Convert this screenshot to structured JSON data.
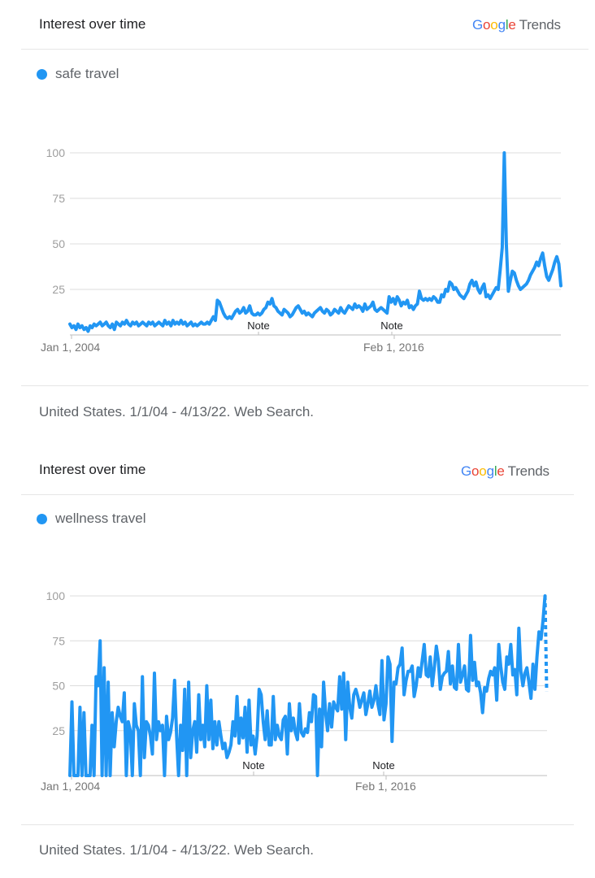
{
  "charts": [
    {
      "header": {
        "title": "Interest over time",
        "logo_google": [
          "G",
          "o",
          "o",
          "g",
          "l",
          "e"
        ],
        "logo_trends": "Trends"
      },
      "legend_label": "safe travel",
      "footer": "United States. 1/1/04 - 4/13/22. Web Search.",
      "colors": {
        "series": "#2196f3"
      }
    },
    {
      "header": {
        "title": "Interest over time",
        "logo_google": [
          "G",
          "o",
          "o",
          "g",
          "l",
          "e"
        ],
        "logo_trends": "Trends"
      },
      "legend_label": "wellness travel",
      "footer": "United States. 1/1/04 - 4/13/22. Web Search.",
      "colors": {
        "series": "#2196f3"
      }
    }
  ],
  "logo_colors": [
    "#4285f4",
    "#ea4335",
    "#fbbc05",
    "#4285f4",
    "#34a853",
    "#ea4335"
  ],
  "chart_data": [
    {
      "type": "line",
      "series": [
        {
          "name": "safe travel",
          "values": [
            6,
            4,
            5,
            3,
            6,
            4,
            5,
            3,
            4,
            2,
            5,
            4,
            6,
            5,
            6,
            7,
            5,
            6,
            7,
            5,
            4,
            6,
            3,
            7,
            6,
            5,
            7,
            6,
            8,
            6,
            5,
            7,
            6,
            7,
            5,
            6,
            7,
            6,
            5,
            7,
            6,
            7,
            5,
            6,
            7,
            6,
            5,
            8,
            6,
            7,
            5,
            8,
            6,
            7,
            6,
            8,
            6,
            7,
            5,
            6,
            7,
            5,
            6,
            5,
            6,
            7,
            6,
            6,
            7,
            6,
            8,
            10,
            8,
            19,
            18,
            15,
            12,
            10,
            9,
            10,
            9,
            11,
            13,
            14,
            12,
            13,
            15,
            12,
            13,
            16,
            12,
            11,
            11,
            12,
            11,
            12,
            14,
            15,
            18,
            17,
            20,
            16,
            15,
            13,
            12,
            11,
            14,
            13,
            12,
            10,
            11,
            13,
            15,
            16,
            14,
            12,
            13,
            11,
            12,
            11,
            10,
            12,
            13,
            14,
            15,
            13,
            12,
            14,
            13,
            11,
            12,
            14,
            13,
            12,
            15,
            13,
            12,
            14,
            16,
            15,
            14,
            17,
            15,
            16,
            15,
            13,
            17,
            14,
            15,
            16,
            18,
            14,
            13,
            14,
            15,
            14,
            13,
            12,
            21,
            18,
            20,
            17,
            21,
            19,
            16,
            18,
            17,
            19,
            15,
            16,
            14,
            16,
            17,
            24,
            20,
            19,
            20,
            19,
            20,
            19,
            21,
            20,
            18,
            18,
            22,
            21,
            25,
            24,
            29,
            28,
            25,
            26,
            24,
            22,
            21,
            20,
            22,
            24,
            28,
            30,
            27,
            29,
            25,
            23,
            26,
            28,
            21,
            22,
            20,
            22,
            24,
            26,
            25,
            36,
            48,
            100,
            50,
            24,
            30,
            35,
            34,
            30,
            27,
            25,
            26,
            27,
            28,
            30,
            33,
            35,
            37,
            40,
            38,
            42,
            45,
            38,
            32,
            30,
            33,
            36,
            40,
            43,
            39,
            27
          ]
        },
        {
          "name": "",
          "values": []
        }
      ],
      "x_labels": [
        "Jan 1, 2004",
        "Feb 1, 2016"
      ],
      "y_ticks": [
        25,
        50,
        75,
        100
      ],
      "annotations": [
        "Note",
        "Note"
      ],
      "ylim": [
        0,
        100
      ]
    },
    {
      "type": "line",
      "series": [
        {
          "name": "wellness travel",
          "values": [
            0,
            41,
            0,
            0,
            0,
            38,
            0,
            35,
            0,
            0,
            0,
            28,
            0,
            55,
            50,
            75,
            0,
            60,
            0,
            52,
            0,
            35,
            16,
            30,
            38,
            33,
            30,
            46,
            0,
            30,
            25,
            0,
            40,
            28,
            25,
            0,
            55,
            10,
            30,
            28,
            22,
            12,
            57,
            20,
            30,
            25,
            28,
            0,
            33,
            20,
            24,
            32,
            53,
            22,
            0,
            28,
            14,
            48,
            0,
            52,
            10,
            25,
            30,
            13,
            45,
            20,
            28,
            16,
            50,
            20,
            42,
            15,
            30,
            17,
            30,
            22,
            15,
            18,
            10,
            13,
            17,
            30,
            22,
            44,
            18,
            32,
            21,
            38,
            13,
            42,
            17,
            22,
            12,
            22,
            48,
            45,
            30,
            20,
            36,
            17,
            17,
            44,
            20,
            28,
            22,
            20,
            31,
            33,
            12,
            40,
            25,
            32,
            24,
            20,
            40,
            24,
            22,
            26,
            24,
            35,
            30,
            45,
            44,
            0,
            37,
            16,
            52,
            35,
            25,
            40,
            27,
            41,
            38,
            36,
            55,
            37,
            57,
            20,
            52,
            38,
            32,
            45,
            48,
            44,
            38,
            42,
            46,
            34,
            40,
            47,
            38,
            42,
            50,
            40,
            34,
            64,
            31,
            40,
            66,
            62,
            19,
            52,
            51,
            60,
            62,
            71,
            45,
            53,
            58,
            58,
            61,
            44,
            50,
            60,
            55,
            64,
            73,
            56,
            55,
            66,
            50,
            60,
            72,
            64,
            48,
            55,
            57,
            58,
            69,
            51,
            61,
            49,
            48,
            73,
            52,
            56,
            61,
            48,
            47,
            78,
            53,
            63,
            50,
            52,
            46,
            35,
            49,
            47,
            54,
            58,
            56,
            60,
            42,
            73,
            61,
            52,
            48,
            66,
            62,
            73,
            56,
            59,
            45,
            82,
            58,
            50,
            57,
            60,
            52,
            43,
            62,
            48,
            66,
            80,
            76,
            86,
            100,
            82
          ]
        }
      ],
      "x_labels": [
        "Jan 1, 2004",
        "Feb 1, 2016"
      ],
      "y_ticks": [
        25,
        50,
        75,
        100
      ],
      "annotations": [
        "Note",
        "Note"
      ],
      "ylim": [
        0,
        100
      ]
    }
  ]
}
